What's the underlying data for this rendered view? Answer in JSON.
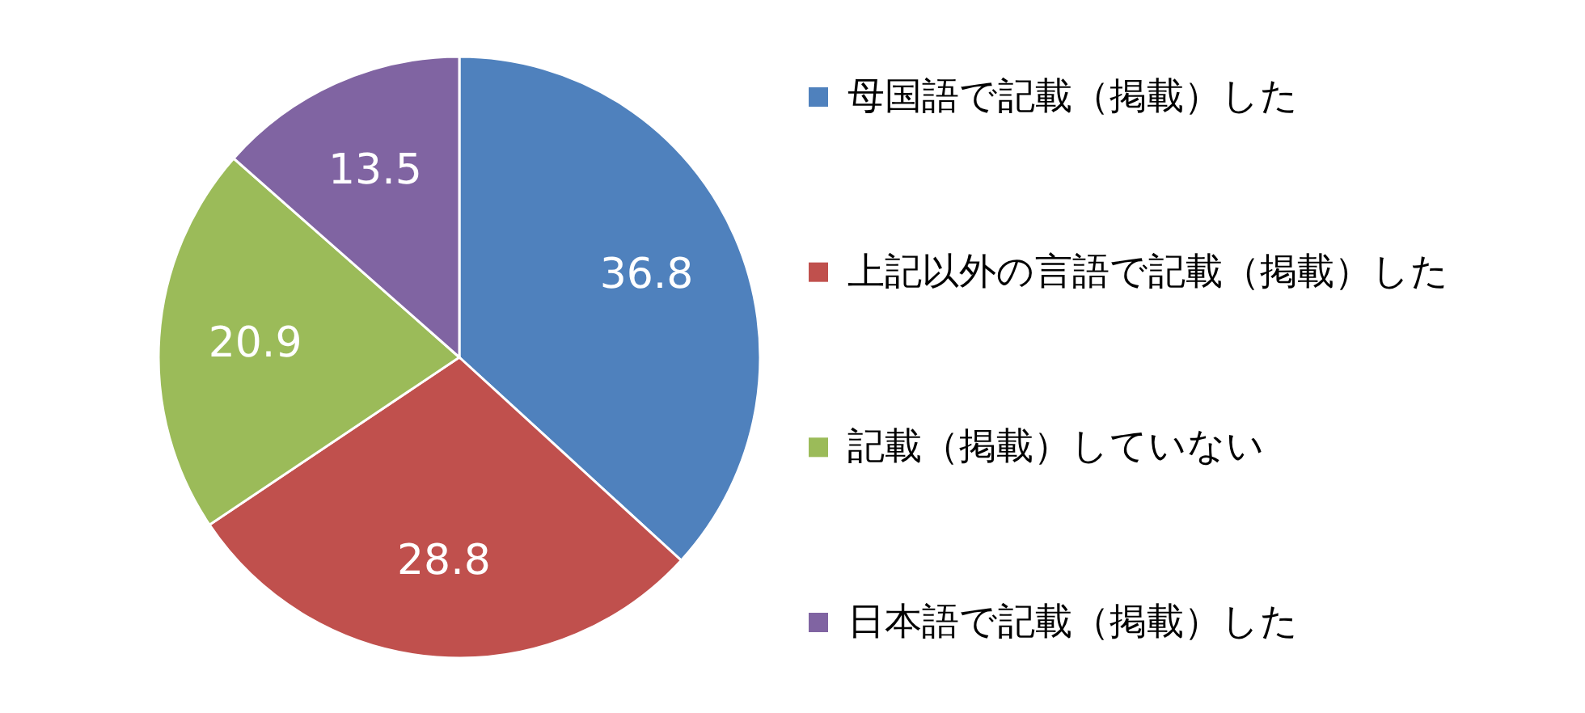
{
  "chart_data": {
    "type": "pie",
    "categories": [
      "母国語で記載（掲載）した",
      "上記以外の言語で記載（掲載）した",
      "記載（掲載）していない",
      "日本語で記載（掲載）した"
    ],
    "values": [
      36.8,
      28.8,
      20.9,
      13.5
    ],
    "colors": [
      "#4f81bd",
      "#c0504d",
      "#9bbb59",
      "#8064a2"
    ],
    "data_labels": true,
    "legend": "right"
  }
}
